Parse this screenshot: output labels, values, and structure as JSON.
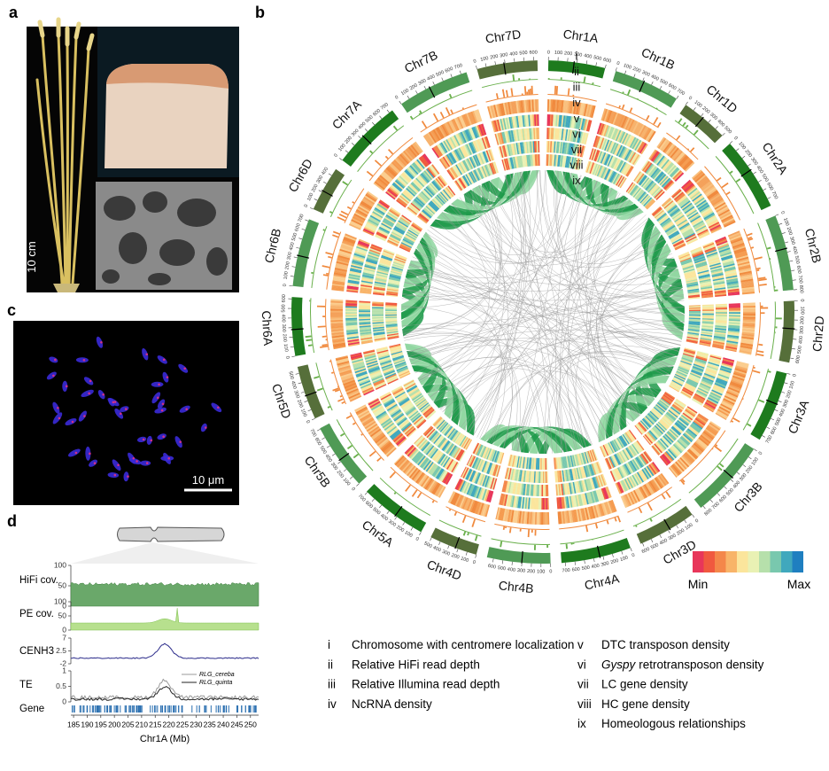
{
  "panels": {
    "a": "a",
    "b": "b",
    "c": "c",
    "d": "d"
  },
  "panel_a": {
    "scale_bar": "10 cm"
  },
  "panel_c": {
    "scale_bar": "10 μm"
  },
  "circos": {
    "ring_labels": [
      "i",
      "ii",
      "iii",
      "iv",
      "v",
      "vi",
      "vii",
      "viii",
      "ix"
    ],
    "chromosomes": [
      {
        "name": "Chr1A",
        "length": 600,
        "color": "#1e7b1e",
        "ticks": [
          0,
          100,
          200,
          300,
          400,
          500,
          600
        ]
      },
      {
        "name": "Chr1B",
        "length": 700,
        "color": "#4f9a55",
        "ticks": [
          0,
          100,
          200,
          300,
          400,
          500,
          600,
          700
        ]
      },
      {
        "name": "Chr1D",
        "length": 500,
        "color": "#566f3a",
        "ticks": [
          0,
          100,
          200,
          300,
          400,
          500
        ]
      },
      {
        "name": "Chr2A",
        "length": 780,
        "color": "#1e7b1e",
        "ticks": [
          0,
          100,
          200,
          300,
          400,
          500,
          600,
          700
        ]
      },
      {
        "name": "Chr2B",
        "length": 800,
        "color": "#4f9a55",
        "ticks": [
          0,
          100,
          200,
          300,
          400,
          500,
          600,
          700,
          800
        ]
      },
      {
        "name": "Chr2D",
        "length": 650,
        "color": "#566f3a",
        "ticks": [
          0,
          100,
          200,
          300,
          400,
          500,
          600
        ]
      },
      {
        "name": "Chr3A",
        "length": 750,
        "color": "#1e7b1e",
        "ticks": [
          0,
          100,
          200,
          300,
          400,
          500,
          600,
          700
        ]
      },
      {
        "name": "Chr3B",
        "length": 830,
        "color": "#4f9a55",
        "ticks": [
          0,
          100,
          200,
          300,
          400,
          500,
          600,
          700,
          800
        ]
      },
      {
        "name": "Chr3D",
        "length": 620,
        "color": "#566f3a",
        "ticks": [
          0,
          100,
          200,
          300,
          400,
          500,
          600
        ]
      },
      {
        "name": "Chr4A",
        "length": 740,
        "color": "#1e7b1e",
        "ticks": [
          0,
          100,
          200,
          300,
          400,
          500,
          600,
          700
        ]
      },
      {
        "name": "Chr4B",
        "length": 670,
        "color": "#4f9a55",
        "ticks": [
          0,
          100,
          200,
          300,
          400,
          500,
          600
        ]
      },
      {
        "name": "Chr4D",
        "length": 510,
        "color": "#566f3a",
        "ticks": [
          0,
          100,
          200,
          300,
          400,
          500
        ]
      },
      {
        "name": "Chr5A",
        "length": 710,
        "color": "#1e7b1e",
        "ticks": [
          0,
          100,
          200,
          300,
          400,
          500,
          600,
          700
        ]
      },
      {
        "name": "Chr5B",
        "length": 710,
        "color": "#4f9a55",
        "ticks": [
          0,
          100,
          200,
          300,
          400,
          500,
          600,
          700
        ]
      },
      {
        "name": "Chr5D",
        "length": 570,
        "color": "#566f3a",
        "ticks": [
          0,
          100,
          200,
          300,
          400,
          500
        ]
      },
      {
        "name": "Chr6A",
        "length": 620,
        "color": "#1e7b1e",
        "ticks": [
          0,
          100,
          200,
          300,
          400,
          500,
          600
        ]
      },
      {
        "name": "Chr6B",
        "length": 720,
        "color": "#4f9a55",
        "ticks": [
          0,
          100,
          200,
          300,
          400,
          500,
          600,
          700
        ]
      },
      {
        "name": "Chr6D",
        "length": 480,
        "color": "#566f3a",
        "ticks": [
          0,
          100,
          200,
          300,
          400
        ]
      },
      {
        "name": "Chr7A",
        "length": 740,
        "color": "#1e7b1e",
        "ticks": [
          0,
          100,
          200,
          300,
          400,
          500,
          600,
          700
        ]
      },
      {
        "name": "Chr7B",
        "length": 760,
        "color": "#4f9a55",
        "ticks": [
          0,
          100,
          200,
          300,
          400,
          500,
          600,
          700
        ]
      },
      {
        "name": "Chr7D",
        "length": 640,
        "color": "#566f3a",
        "ticks": [
          0,
          100,
          200,
          300,
          400,
          500,
          600
        ]
      }
    ],
    "scale": {
      "min": "Min",
      "max": "Max",
      "colors": [
        "#e8365a",
        "#f0593f",
        "#f4874a",
        "#f8b469",
        "#fbe59c",
        "#e9f1b4",
        "#b6e0ab",
        "#79c8ae",
        "#40a8bd",
        "#1f7fc0"
      ]
    }
  },
  "legend": [
    {
      "numeral": "i",
      "text": "Chromosome with centromere localization"
    },
    {
      "numeral": "ii",
      "text": "Relative HiFi read depth"
    },
    {
      "numeral": "iii",
      "text": "Relative Illumina read depth"
    },
    {
      "numeral": "iv",
      "text": "NcRNA density"
    },
    {
      "numeral": "v",
      "text": "DTC transposon density"
    },
    {
      "numeral": "vi",
      "italic": "Gyspy",
      "text": "retrotransposon density"
    },
    {
      "numeral": "vii",
      "text": "LC gene density"
    },
    {
      "numeral": "viii",
      "text": "HC gene density"
    },
    {
      "numeral": "ix",
      "text": "Homeologous relationships"
    }
  ],
  "panel_d": {
    "xlabel": "Chr1A (Mb)",
    "xlim": [
      184,
      253
    ],
    "xticks": [
      185,
      190,
      195,
      200,
      205,
      210,
      215,
      220,
      225,
      230,
      235,
      240,
      245,
      250
    ],
    "tracks": [
      {
        "label": "HiFi cov.",
        "ylim": [
          0,
          100
        ],
        "yticks": [
          100,
          50,
          0
        ]
      },
      {
        "label": "PE cov.",
        "ylim": [
          0,
          100
        ],
        "yticks": [
          100,
          50,
          0
        ]
      },
      {
        "label": "CENH3",
        "ylim": [
          -2,
          7
        ],
        "yticks": [
          7,
          2.5,
          -2
        ]
      },
      {
        "label": "TE",
        "ylim": [
          0,
          1
        ],
        "yticks": [
          1,
          0.5,
          0
        ]
      },
      {
        "label": "Gene"
      }
    ],
    "te_legend": [
      "RLG_cereba",
      "RLG_quinta"
    ]
  }
}
